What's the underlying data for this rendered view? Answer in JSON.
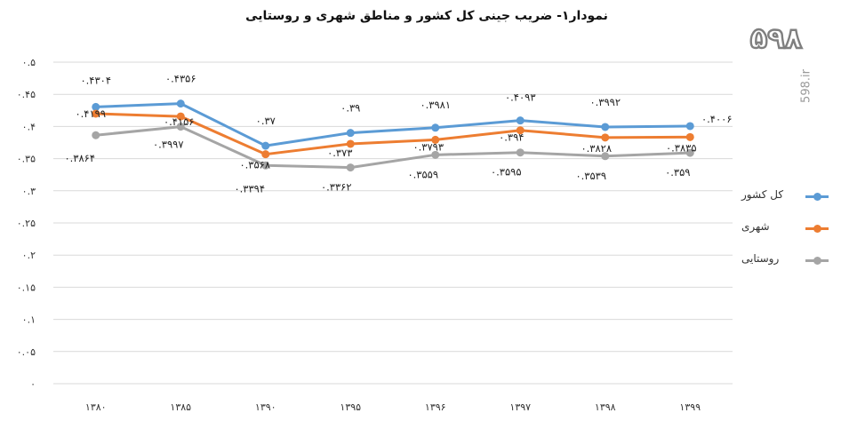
{
  "chart_data": {
    "type": "line",
    "title": "نمودار۱- ضریب جینی کل کشور و مناطق شهری و روستایی",
    "categories": [
      "۱۳۸۰",
      "۱۳۸۵",
      "۱۳۹۰",
      "۱۳۹۵",
      "۱۳۹۶",
      "۱۳۹۷",
      "۱۳۹۸",
      "۱۳۹۹"
    ],
    "ylim": [
      0,
      0.5
    ],
    "y_ticks": [
      0,
      0.05,
      0.1,
      0.15,
      0.2,
      0.25,
      0.3,
      0.35,
      0.4,
      0.45,
      0.5
    ],
    "y_tick_labels": [
      "۰",
      "۰.۰۵",
      "۰.۱",
      "۰.۱۵",
      "۰.۲",
      "۰.۲۵",
      "۰.۳",
      "۰.۳۵",
      "۰.۴",
      "۰.۴۵",
      "۰.۵"
    ],
    "grid": true,
    "legend_position": "right",
    "series": [
      {
        "name": "کل کشور",
        "color": "#5b9bd5",
        "values": [
          0.4304,
          0.4356,
          0.37,
          0.39,
          0.3981,
          0.4093,
          0.3992,
          0.4006
        ],
        "labels": [
          "۰.۴۳۰۴",
          "۰.۴۳۵۶",
          "۰.۳۷",
          "۰.۳۹",
          "۰.۳۹۸۱",
          "۰.۴۰۹۳",
          "۰.۳۹۹۲",
          "۰.۴۰۰۶"
        ]
      },
      {
        "name": "شهری",
        "color": "#ed7d31",
        "values": [
          0.4199,
          0.4156,
          0.3568,
          0.373,
          0.3793,
          0.394,
          0.3828,
          0.3835
        ],
        "labels": [
          "۰.۴۱۹۹",
          "۰.۴۱۵۶",
          "۰.۳۵۶۸",
          "۰.۳۷۳",
          "۰.۳۷۹۳",
          "۰.۳۹۴",
          "۰.۳۸۲۸",
          "۰.۳۸۳۵"
        ]
      },
      {
        "name": "روستایی",
        "color": "#a5a5a5",
        "values": [
          0.3864,
          0.3997,
          0.3394,
          0.3362,
          0.3559,
          0.3595,
          0.3539,
          0.359
        ],
        "labels": [
          "۰.۳۸۶۴",
          "۰.۳۹۹۷",
          "۰.۳۳۹۴",
          "۰.۳۳۶۲",
          "۰.۳۵۵۹",
          "۰.۳۵۹۵",
          "۰.۳۵۳۹",
          "۰.۳۵۹"
        ]
      }
    ]
  },
  "watermark": {
    "logo": "۵۹۸",
    "site": "598.ir"
  }
}
